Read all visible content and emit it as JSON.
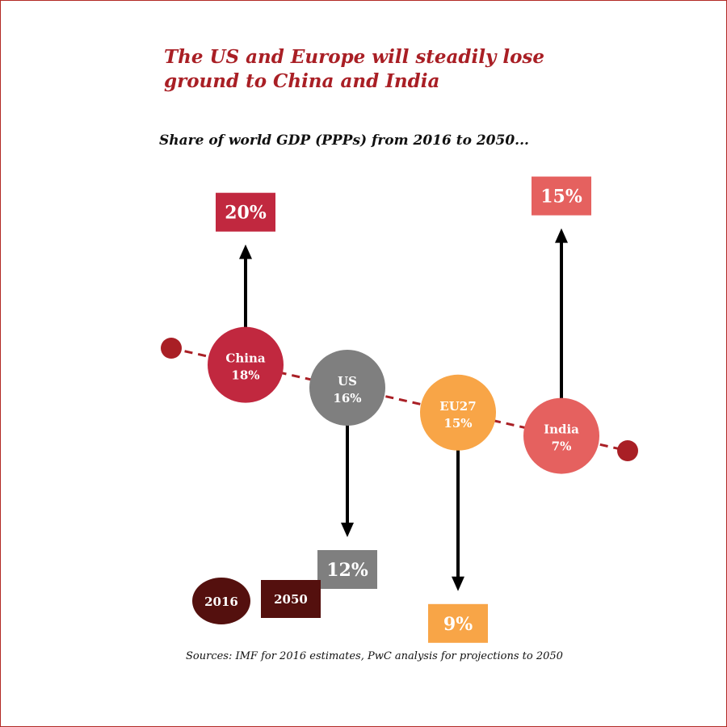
{
  "title": "The US and Europe will steadily lose ground to China and India",
  "subtitle": "Share of world GDP (PPPs) from 2016 to 2050...",
  "source": "Sources: IMF for 2016 estimates, PwC analysis for projections to 2050",
  "chart_data": {
    "type": "scatter",
    "categories": [
      "China",
      "US",
      "EU27",
      "India"
    ],
    "series": [
      {
        "name": "2016",
        "values": [
          18,
          16,
          15,
          7
        ],
        "labels": [
          "18%",
          "16%",
          "15%",
          "7%"
        ]
      },
      {
        "name": "2050",
        "values": [
          20,
          12,
          9,
          15
        ],
        "labels": [
          "20%",
          "12%",
          "9%",
          "15%"
        ]
      }
    ],
    "colors": {
      "China": "#c1283f",
      "US": "#7f7f7f",
      "EU27": "#f8a547",
      "India": "#e5615f"
    },
    "legend": [
      {
        "label": "2016",
        "shape": "circle",
        "color": "#54100e"
      },
      {
        "label": "2050",
        "shape": "rectangle",
        "color": "#54100e"
      }
    ],
    "trend_color": "#a91f25",
    "arrow_color": "#000000"
  }
}
